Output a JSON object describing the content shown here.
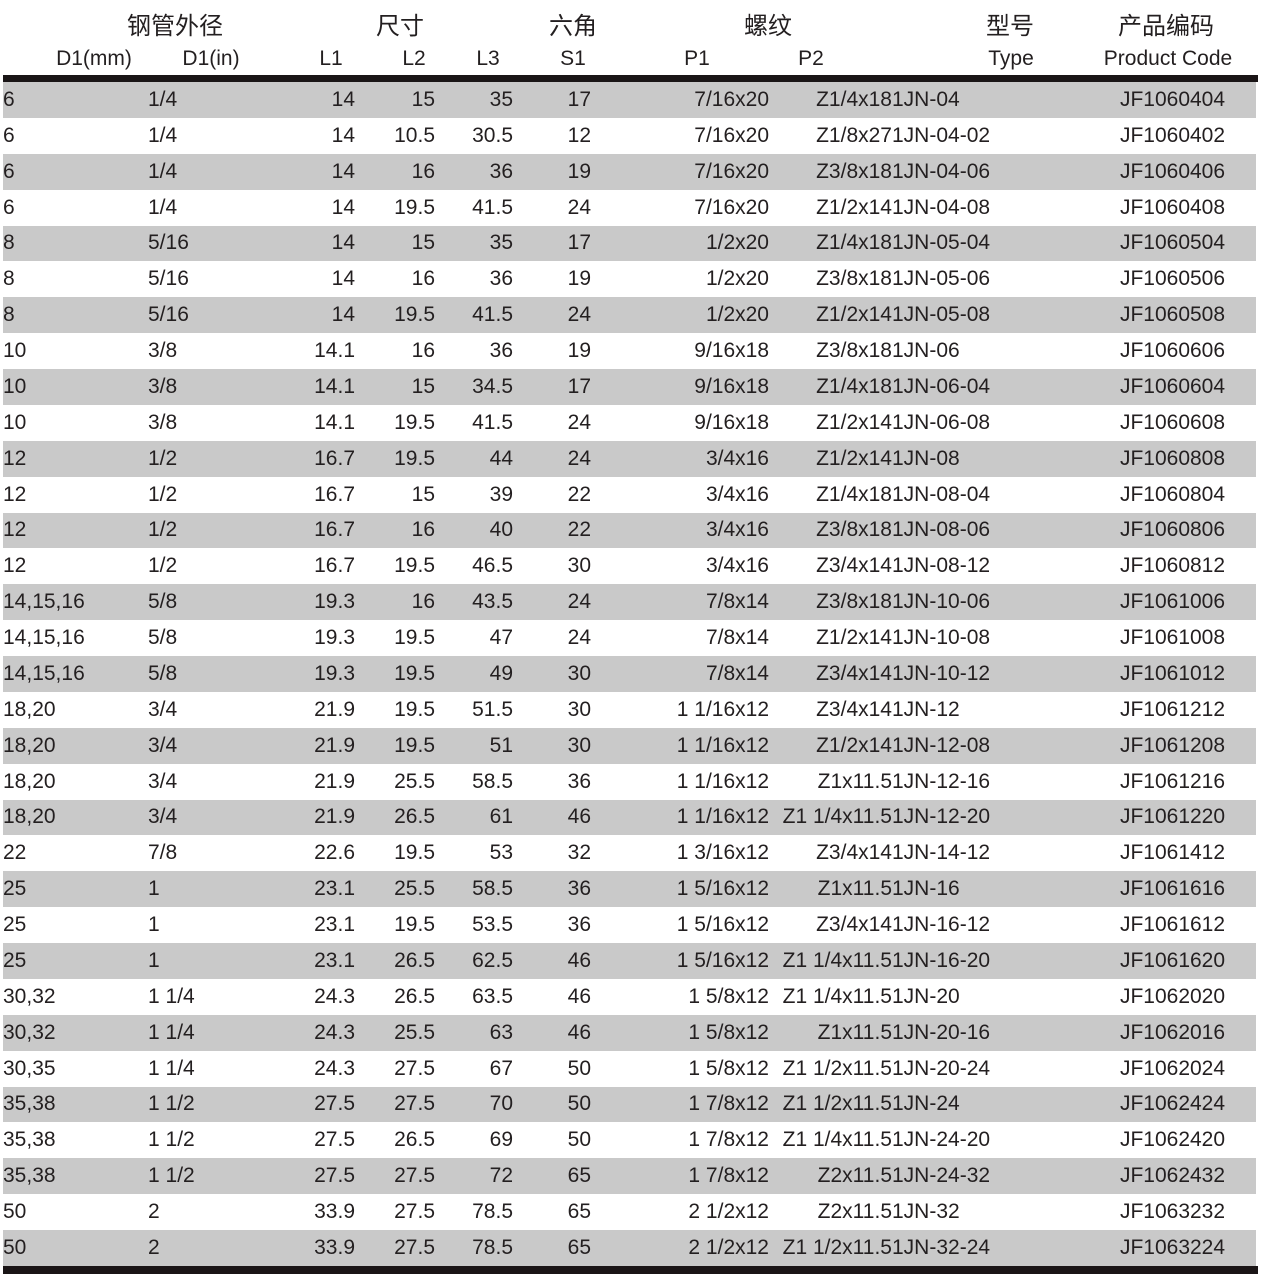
{
  "colors": {
    "row_alt_gray": "#c9c9c9",
    "text": "#231f20",
    "rule_black": "#1a1516",
    "background": "#ffffff"
  },
  "table": {
    "group_headers": [
      {
        "label": "钢管外径",
        "span": 2
      },
      {
        "label": "尺寸",
        "span": 3
      },
      {
        "label": "六角",
        "span": 1
      },
      {
        "label": "螺纹",
        "span": 2
      },
      {
        "label": "型号",
        "span": 1
      },
      {
        "label": "产品编码",
        "span": 1
      }
    ],
    "sub_headers": [
      "D1(mm)",
      "D1(in)",
      "L1",
      "L2",
      "L3",
      "S1",
      "P1",
      "P2",
      "Type",
      "Product Code"
    ],
    "rows": [
      [
        "6",
        "1/4",
        "14",
        "15",
        "35",
        "17",
        "7/16x20",
        "Z1/4x18",
        "1JN-04",
        "JF1060404"
      ],
      [
        "6",
        "1/4",
        "14",
        "10.5",
        "30.5",
        "12",
        "7/16x20",
        "Z1/8x27",
        "1JN-04-02",
        "JF1060402"
      ],
      [
        "6",
        "1/4",
        "14",
        "16",
        "36",
        "19",
        "7/16x20",
        "Z3/8x18",
        "1JN-04-06",
        "JF1060406"
      ],
      [
        "6",
        "1/4",
        "14",
        "19.5",
        "41.5",
        "24",
        "7/16x20",
        "Z1/2x14",
        "1JN-04-08",
        "JF1060408"
      ],
      [
        "8",
        "5/16",
        "14",
        "15",
        "35",
        "17",
        "1/2x20",
        "Z1/4x18",
        "1JN-05-04",
        "JF1060504"
      ],
      [
        "8",
        "5/16",
        "14",
        "16",
        "36",
        "19",
        "1/2x20",
        "Z3/8x18",
        "1JN-05-06",
        "JF1060506"
      ],
      [
        "8",
        "5/16",
        "14",
        "19.5",
        "41.5",
        "24",
        "1/2x20",
        "Z1/2x14",
        "1JN-05-08",
        "JF1060508"
      ],
      [
        "10",
        "3/8",
        "14.1",
        "16",
        "36",
        "19",
        "9/16x18",
        "Z3/8x18",
        "1JN-06",
        "JF1060606"
      ],
      [
        "10",
        "3/8",
        "14.1",
        "15",
        "34.5",
        "17",
        "9/16x18",
        "Z1/4x18",
        "1JN-06-04",
        "JF1060604"
      ],
      [
        "10",
        "3/8",
        "14.1",
        "19.5",
        "41.5",
        "24",
        "9/16x18",
        "Z1/2x14",
        "1JN-06-08",
        "JF1060608"
      ],
      [
        "12",
        "1/2",
        "16.7",
        "19.5",
        "44",
        "24",
        "3/4x16",
        "Z1/2x14",
        "1JN-08",
        "JF1060808"
      ],
      [
        "12",
        "1/2",
        "16.7",
        "15",
        "39",
        "22",
        "3/4x16",
        "Z1/4x18",
        "1JN-08-04",
        "JF1060804"
      ],
      [
        "12",
        "1/2",
        "16.7",
        "16",
        "40",
        "22",
        "3/4x16",
        "Z3/8x18",
        "1JN-08-06",
        "JF1060806"
      ],
      [
        "12",
        "1/2",
        "16.7",
        "19.5",
        "46.5",
        "30",
        "3/4x16",
        "Z3/4x14",
        "1JN-08-12",
        "JF1060812"
      ],
      [
        "14,15,16",
        "5/8",
        "19.3",
        "16",
        "43.5",
        "24",
        "7/8x14",
        "Z3/8x18",
        "1JN-10-06",
        "JF1061006"
      ],
      [
        "14,15,16",
        "5/8",
        "19.3",
        "19.5",
        "47",
        "24",
        "7/8x14",
        "Z1/2x14",
        "1JN-10-08",
        "JF1061008"
      ],
      [
        "14,15,16",
        "5/8",
        "19.3",
        "19.5",
        "49",
        "30",
        "7/8x14",
        "Z3/4x14",
        "1JN-10-12",
        "JF1061012"
      ],
      [
        "18,20",
        "3/4",
        "21.9",
        "19.5",
        "51.5",
        "30",
        "1 1/16x12",
        "Z3/4x14",
        "1JN-12",
        "JF1061212"
      ],
      [
        "18,20",
        "3/4",
        "21.9",
        "19.5",
        "51",
        "30",
        "1 1/16x12",
        "Z1/2x14",
        "1JN-12-08",
        "JF1061208"
      ],
      [
        "18,20",
        "3/4",
        "21.9",
        "25.5",
        "58.5",
        "36",
        "1 1/16x12",
        "Z1x11.5",
        "1JN-12-16",
        "JF1061216"
      ],
      [
        "18,20",
        "3/4",
        "21.9",
        "26.5",
        "61",
        "46",
        "1 1/16x12",
        "Z1 1/4x11.5",
        "1JN-12-20",
        "JF1061220"
      ],
      [
        "22",
        "7/8",
        "22.6",
        "19.5",
        "53",
        "32",
        "1 3/16x12",
        "Z3/4x14",
        "1JN-14-12",
        "JF1061412"
      ],
      [
        "25",
        "1",
        "23.1",
        "25.5",
        "58.5",
        "36",
        "1 5/16x12",
        "Z1x11.5",
        "1JN-16",
        "JF1061616"
      ],
      [
        "25",
        "1",
        "23.1",
        "19.5",
        "53.5",
        "36",
        "1 5/16x12",
        "Z3/4x14",
        "1JN-16-12",
        "JF1061612"
      ],
      [
        "25",
        "1",
        "23.1",
        "26.5",
        "62.5",
        "46",
        "1 5/16x12",
        "Z1 1/4x11.5",
        "1JN-16-20",
        "JF1061620"
      ],
      [
        "30,32",
        "1 1/4",
        "24.3",
        "26.5",
        "63.5",
        "46",
        "1 5/8x12",
        "Z1 1/4x11.5",
        "1JN-20",
        "JF1062020"
      ],
      [
        "30,32",
        "1 1/4",
        "24.3",
        "25.5",
        "63",
        "46",
        "1 5/8x12",
        "Z1x11.5",
        "1JN-20-16",
        "JF1062016"
      ],
      [
        "30,35",
        "1 1/4",
        "24.3",
        "27.5",
        "67",
        "50",
        "1 5/8x12",
        "Z1 1/2x11.5",
        "1JN-20-24",
        "JF1062024"
      ],
      [
        "35,38",
        "1 1/2",
        "27.5",
        "27.5",
        "70",
        "50",
        "1 7/8x12",
        "Z1 1/2x11.5",
        "1JN-24",
        "JF1062424"
      ],
      [
        "35,38",
        "1 1/2",
        "27.5",
        "26.5",
        "69",
        "50",
        "1 7/8x12",
        "Z1 1/4x11.5",
        "1JN-24-20",
        "JF1062420"
      ],
      [
        "35,38",
        "1 1/2",
        "27.5",
        "27.5",
        "72",
        "65",
        "1 7/8x12",
        "Z2x11.5",
        "1JN-24-32",
        "JF1062432"
      ],
      [
        "50",
        "2",
        "33.9",
        "27.5",
        "78.5",
        "65",
        "2 1/2x12",
        "Z2x11.5",
        "1JN-32",
        "JF1063232"
      ],
      [
        "50",
        "2",
        "33.9",
        "27.5",
        "78.5",
        "65",
        "2 1/2x12",
        "Z1 1/2x11.5",
        "1JN-32-24",
        "JF1063224"
      ]
    ]
  }
}
